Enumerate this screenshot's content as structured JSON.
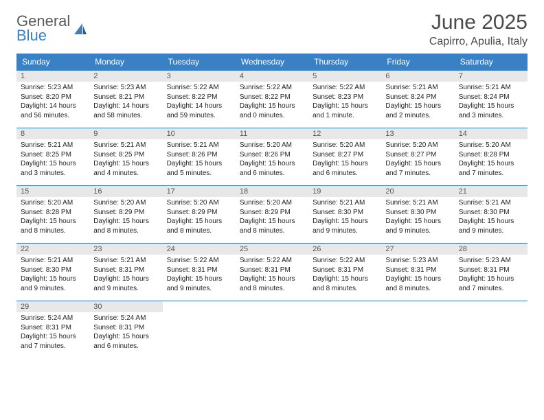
{
  "logo": {
    "general": "General",
    "blue": "Blue"
  },
  "title": "June 2025",
  "location": "Capirro, Apulia, Italy",
  "colors": {
    "header_bg": "#3a80c4",
    "header_text": "#ffffff",
    "daynum_bg": "#e8e8e8",
    "body_text": "#222222",
    "rule": "#3a80c4"
  },
  "typography": {
    "title_fontsize": 30,
    "location_fontsize": 16,
    "weekday_fontsize": 12,
    "daynum_fontsize": 11,
    "body_fontsize": 10
  },
  "weekdays": [
    "Sunday",
    "Monday",
    "Tuesday",
    "Wednesday",
    "Thursday",
    "Friday",
    "Saturday"
  ],
  "days": [
    {
      "n": 1,
      "rise": "5:23 AM",
      "set": "8:20 PM",
      "dl": "14 hours and 56 minutes."
    },
    {
      "n": 2,
      "rise": "5:23 AM",
      "set": "8:21 PM",
      "dl": "14 hours and 58 minutes."
    },
    {
      "n": 3,
      "rise": "5:22 AM",
      "set": "8:22 PM",
      "dl": "14 hours and 59 minutes."
    },
    {
      "n": 4,
      "rise": "5:22 AM",
      "set": "8:22 PM",
      "dl": "15 hours and 0 minutes."
    },
    {
      "n": 5,
      "rise": "5:22 AM",
      "set": "8:23 PM",
      "dl": "15 hours and 1 minute."
    },
    {
      "n": 6,
      "rise": "5:21 AM",
      "set": "8:24 PM",
      "dl": "15 hours and 2 minutes."
    },
    {
      "n": 7,
      "rise": "5:21 AM",
      "set": "8:24 PM",
      "dl": "15 hours and 3 minutes."
    },
    {
      "n": 8,
      "rise": "5:21 AM",
      "set": "8:25 PM",
      "dl": "15 hours and 3 minutes."
    },
    {
      "n": 9,
      "rise": "5:21 AM",
      "set": "8:25 PM",
      "dl": "15 hours and 4 minutes."
    },
    {
      "n": 10,
      "rise": "5:21 AM",
      "set": "8:26 PM",
      "dl": "15 hours and 5 minutes."
    },
    {
      "n": 11,
      "rise": "5:20 AM",
      "set": "8:26 PM",
      "dl": "15 hours and 6 minutes."
    },
    {
      "n": 12,
      "rise": "5:20 AM",
      "set": "8:27 PM",
      "dl": "15 hours and 6 minutes."
    },
    {
      "n": 13,
      "rise": "5:20 AM",
      "set": "8:27 PM",
      "dl": "15 hours and 7 minutes."
    },
    {
      "n": 14,
      "rise": "5:20 AM",
      "set": "8:28 PM",
      "dl": "15 hours and 7 minutes."
    },
    {
      "n": 15,
      "rise": "5:20 AM",
      "set": "8:28 PM",
      "dl": "15 hours and 8 minutes."
    },
    {
      "n": 16,
      "rise": "5:20 AM",
      "set": "8:29 PM",
      "dl": "15 hours and 8 minutes."
    },
    {
      "n": 17,
      "rise": "5:20 AM",
      "set": "8:29 PM",
      "dl": "15 hours and 8 minutes."
    },
    {
      "n": 18,
      "rise": "5:20 AM",
      "set": "8:29 PM",
      "dl": "15 hours and 8 minutes."
    },
    {
      "n": 19,
      "rise": "5:21 AM",
      "set": "8:30 PM",
      "dl": "15 hours and 9 minutes."
    },
    {
      "n": 20,
      "rise": "5:21 AM",
      "set": "8:30 PM",
      "dl": "15 hours and 9 minutes."
    },
    {
      "n": 21,
      "rise": "5:21 AM",
      "set": "8:30 PM",
      "dl": "15 hours and 9 minutes."
    },
    {
      "n": 22,
      "rise": "5:21 AM",
      "set": "8:30 PM",
      "dl": "15 hours and 9 minutes."
    },
    {
      "n": 23,
      "rise": "5:21 AM",
      "set": "8:31 PM",
      "dl": "15 hours and 9 minutes."
    },
    {
      "n": 24,
      "rise": "5:22 AM",
      "set": "8:31 PM",
      "dl": "15 hours and 9 minutes."
    },
    {
      "n": 25,
      "rise": "5:22 AM",
      "set": "8:31 PM",
      "dl": "15 hours and 8 minutes."
    },
    {
      "n": 26,
      "rise": "5:22 AM",
      "set": "8:31 PM",
      "dl": "15 hours and 8 minutes."
    },
    {
      "n": 27,
      "rise": "5:23 AM",
      "set": "8:31 PM",
      "dl": "15 hours and 8 minutes."
    },
    {
      "n": 28,
      "rise": "5:23 AM",
      "set": "8:31 PM",
      "dl": "15 hours and 7 minutes."
    },
    {
      "n": 29,
      "rise": "5:24 AM",
      "set": "8:31 PM",
      "dl": "15 hours and 7 minutes."
    },
    {
      "n": 30,
      "rise": "5:24 AM",
      "set": "8:31 PM",
      "dl": "15 hours and 6 minutes."
    }
  ],
  "labels": {
    "sunrise": "Sunrise:",
    "sunset": "Sunset:",
    "daylight": "Daylight:"
  },
  "layout": {
    "start_weekday": 0,
    "total_cells": 35
  }
}
